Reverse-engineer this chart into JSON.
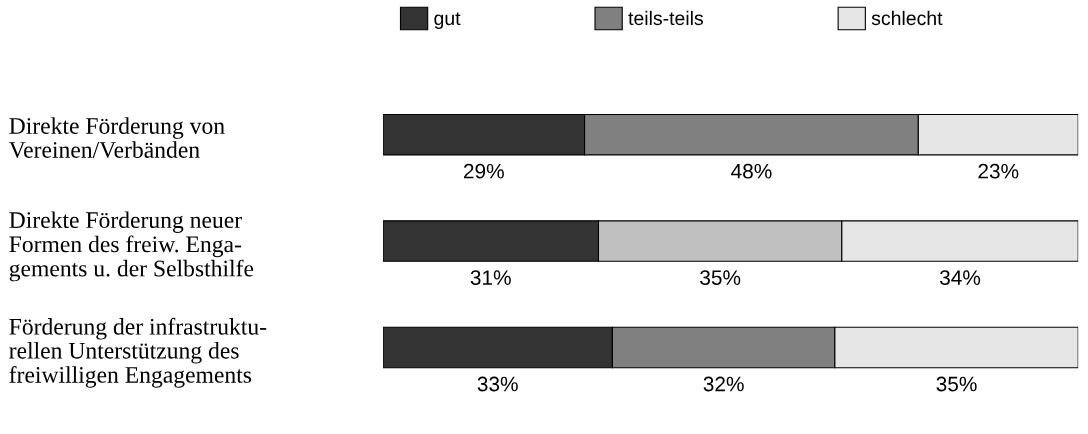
{
  "chart_data": {
    "type": "bar",
    "orientation": "horizontal",
    "stacked": true,
    "categories": [
      "Direkte Förderung von\nVereinen/Verbänden",
      "Direkte Förderung neuer\nFormen des freiw. Enga-\ngements u. der Selbsthilfe",
      "Förderung der infrastruktu-\nrellen Unterstützung des\nfreiwilligen Engagements"
    ],
    "series": [
      {
        "name": "gut",
        "color": "#333333",
        "values": [
          29,
          31,
          33
        ],
        "value_labels": [
          "29%",
          "31%",
          "33%"
        ]
      },
      {
        "name": "teils-teils",
        "color": "#808080",
        "colors": [
          "#808080",
          "#c0c0c0",
          "#808080"
        ],
        "values": [
          48,
          35,
          32
        ],
        "value_labels": [
          "48%",
          "35%",
          "32%"
        ]
      },
      {
        "name": "schlecht",
        "color": "#e6e6e6",
        "values": [
          23,
          34,
          35
        ],
        "value_labels": [
          "23%",
          "34%",
          "35%"
        ]
      }
    ],
    "xlim": [
      0,
      100
    ],
    "legend": "top"
  }
}
